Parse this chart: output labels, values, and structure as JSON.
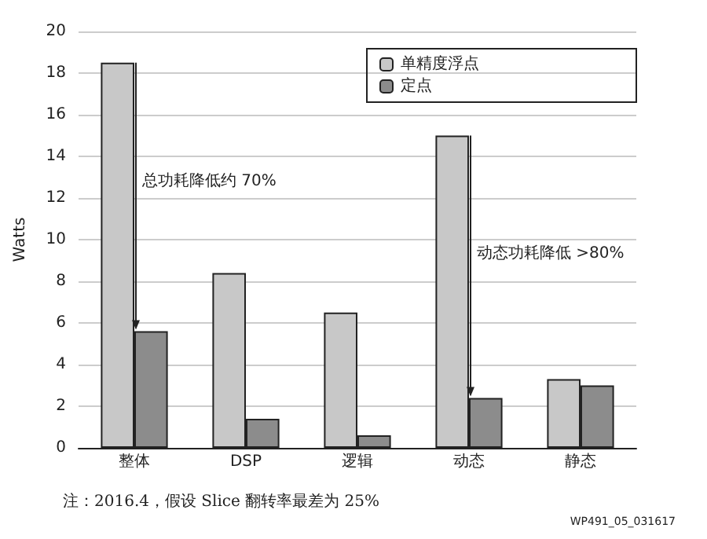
{
  "chart_data": {
    "type": "bar",
    "ylabel": "Watts",
    "categories": [
      "整体",
      "DSP",
      "逻辑",
      "动态",
      "静态"
    ],
    "series": [
      {
        "name": "单精度浮点",
        "color": "#c8c8c8",
        "values": [
          18.5,
          8.4,
          6.5,
          15.0,
          3.3
        ]
      },
      {
        "name": "定点",
        "color": "#8c8c8c",
        "values": [
          5.6,
          1.4,
          0.6,
          2.4,
          3.0
        ]
      }
    ],
    "ylim": [
      0,
      20
    ],
    "yticks": [
      0,
      2,
      4,
      6,
      8,
      10,
      12,
      14,
      16,
      18,
      20
    ],
    "grid": "y",
    "legend": "top right",
    "annotations": [
      "总功耗降低约 70%",
      "动态功耗降低 >80%",
      "注：2016.4，假设 Slice 翻转率最差为 25%",
      "WP491_05_031617"
    ]
  }
}
